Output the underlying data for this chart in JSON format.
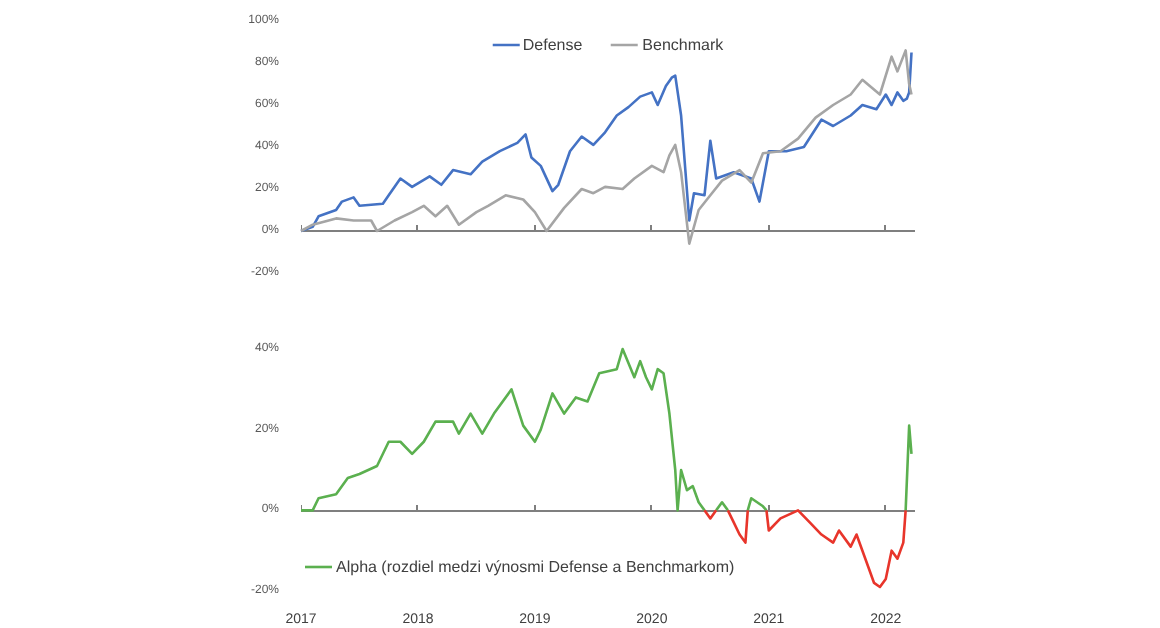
{
  "chart_data": [
    {
      "type": "line",
      "x": [
        2017.0,
        2017.1,
        2017.15,
        2017.3,
        2017.35,
        2017.45,
        2017.5,
        2017.7,
        2017.75,
        2017.85,
        2017.95,
        2018.1,
        2018.2,
        2018.3,
        2018.45,
        2018.55,
        2018.7,
        2018.85,
        2018.92,
        2018.97,
        2019.05,
        2019.15,
        2019.2,
        2019.3,
        2019.4,
        2019.5,
        2019.6,
        2019.7,
        2019.8,
        2019.9,
        2020.0,
        2020.05,
        2020.12,
        2020.17,
        2020.2,
        2020.25,
        2020.32,
        2020.36,
        2020.45,
        2020.5,
        2020.55,
        2020.7,
        2020.85,
        2020.92,
        2021.0,
        2021.15,
        2021.3,
        2021.45,
        2021.55,
        2021.7,
        2021.8,
        2021.92,
        2022.0,
        2022.05,
        2022.1,
        2022.15,
        2022.18,
        2022.2,
        2022.22
      ],
      "series": [
        {
          "name": "Defense",
          "color": "#4472c4",
          "values": [
            0,
            2,
            7,
            10,
            14,
            16,
            12,
            13,
            17,
            25,
            21,
            26,
            22,
            29,
            27,
            33,
            38,
            42,
            46,
            35,
            31,
            19,
            22,
            38,
            45,
            41,
            47,
            55,
            59,
            64,
            66,
            60,
            69,
            73,
            74,
            55,
            5,
            18,
            17,
            43,
            25,
            28,
            25,
            14,
            38,
            38,
            40,
            53,
            50,
            55,
            60,
            58,
            65,
            60,
            66,
            62,
            63,
            66,
            85
          ]
        },
        {
          "name": "Benchmark",
          "color": "#a5a5a5",
          "x": [
            2017.0,
            2017.1,
            2017.3,
            2017.45,
            2017.6,
            2017.65,
            2017.8,
            2017.95,
            2018.05,
            2018.15,
            2018.25,
            2018.35,
            2018.5,
            2018.6,
            2018.75,
            2018.9,
            2019.0,
            2019.1,
            2019.25,
            2019.4,
            2019.5,
            2019.6,
            2019.75,
            2019.85,
            2020.0,
            2020.1,
            2020.15,
            2020.2,
            2020.25,
            2020.32,
            2020.4,
            2020.5,
            2020.6,
            2020.75,
            2020.85,
            2020.95,
            2021.1,
            2021.25,
            2021.4,
            2021.55,
            2021.7,
            2021.8,
            2021.95,
            2022.05,
            2022.1,
            2022.17,
            2022.2,
            2022.22
          ],
          "values": [
            0,
            3,
            6,
            5,
            5,
            0,
            5,
            9,
            12,
            7,
            12,
            3,
            9,
            12,
            17,
            15,
            9,
            0,
            11,
            20,
            18,
            21,
            20,
            25,
            31,
            28,
            36,
            41,
            28,
            -6,
            10,
            17,
            24,
            29,
            23,
            37,
            38,
            44,
            54,
            60,
            65,
            72,
            65,
            83,
            76,
            86,
            70,
            65
          ]
        }
      ],
      "xlim": [
        2017,
        2022.25
      ],
      "xticks": [
        2017,
        2018,
        2019,
        2020,
        2021,
        2022
      ],
      "ylim": [
        -20,
        100
      ],
      "yticks": [
        {
          "value": -20,
          "label": "-20%"
        },
        {
          "value": 0,
          "label": "0%"
        },
        {
          "value": 20,
          "label": "20%"
        },
        {
          "value": 40,
          "label": "40%"
        },
        {
          "value": 60,
          "label": "60%"
        },
        {
          "value": 80,
          "label": "80%"
        },
        {
          "value": 100,
          "label": "100%"
        }
      ],
      "tick_labels": "y",
      "legend": "top"
    },
    {
      "type": "line",
      "x": [
        2017.0,
        2017.1,
        2017.15,
        2017.3,
        2017.4,
        2017.5,
        2017.65,
        2017.75,
        2017.85,
        2017.95,
        2018.05,
        2018.15,
        2018.3,
        2018.35,
        2018.45,
        2018.55,
        2018.65,
        2018.8,
        2018.9,
        2019.0,
        2019.05,
        2019.15,
        2019.25,
        2019.35,
        2019.45,
        2019.55,
        2019.7,
        2019.75,
        2019.85,
        2019.9,
        2019.95,
        2020.0,
        2020.05,
        2020.1,
        2020.15,
        2020.2,
        2020.22,
        2020.25,
        2020.3,
        2020.35,
        2020.4,
        2020.45,
        2020.5,
        2020.55,
        2020.6,
        2020.65,
        2020.7,
        2020.75,
        2020.8,
        2020.82,
        2020.85,
        2020.95,
        2020.98,
        2021.0,
        2021.1,
        2021.25,
        2021.35,
        2021.45,
        2021.55,
        2021.6,
        2021.7,
        2021.75,
        2021.85,
        2021.9,
        2021.95,
        2022.0,
        2022.05,
        2022.1,
        2022.15,
        2022.17,
        2022.2,
        2022.22
      ],
      "series": [
        {
          "name": "Alpha (rozdiel medzi výnosmi Defense a Benchmarkom)",
          "color": "#5bb04f",
          "values": [
            0,
            0,
            3,
            4,
            8,
            9,
            11,
            17,
            17,
            14,
            17,
            22,
            22,
            19,
            24,
            19,
            24,
            30,
            21,
            17,
            20,
            29,
            24,
            28,
            27,
            34,
            35,
            40,
            33,
            37,
            33,
            30,
            35,
            34,
            24,
            10,
            0,
            10,
            5,
            6,
            2,
            0,
            null,
            0,
            2,
            0,
            null,
            null,
            null,
            0,
            3,
            1,
            0,
            null,
            null,
            null,
            null,
            null,
            null,
            null,
            null,
            null,
            null,
            null,
            null,
            null,
            null,
            null,
            null,
            0,
            21,
            14
          ]
        },
        {
          "color": "#e8352b",
          "values": [
            null,
            null,
            null,
            null,
            null,
            null,
            null,
            null,
            null,
            null,
            null,
            null,
            null,
            null,
            null,
            null,
            null,
            null,
            null,
            null,
            null,
            null,
            null,
            null,
            null,
            null,
            null,
            null,
            null,
            null,
            null,
            null,
            null,
            null,
            null,
            null,
            null,
            null,
            null,
            null,
            null,
            0,
            -2,
            0,
            null,
            0,
            -3,
            -6,
            -8,
            0,
            null,
            null,
            0,
            -5,
            -2,
            0,
            -3,
            -6,
            -8,
            -5,
            -9,
            -6,
            -14,
            -18,
            -19,
            -17,
            -10,
            -12,
            -8,
            0,
            null,
            null
          ]
        }
      ],
      "xlim": [
        2017,
        2022.25
      ],
      "xticks": [
        2017,
        2018,
        2019,
        2020,
        2021,
        2022
      ],
      "ylim": [
        -20,
        40
      ],
      "yticks": [
        {
          "value": -20,
          "label": "-20%"
        },
        {
          "value": 0,
          "label": "0%"
        },
        {
          "value": 20,
          "label": "20%"
        },
        {
          "value": 40,
          "label": "40%"
        }
      ],
      "legend": "bottom left"
    }
  ]
}
